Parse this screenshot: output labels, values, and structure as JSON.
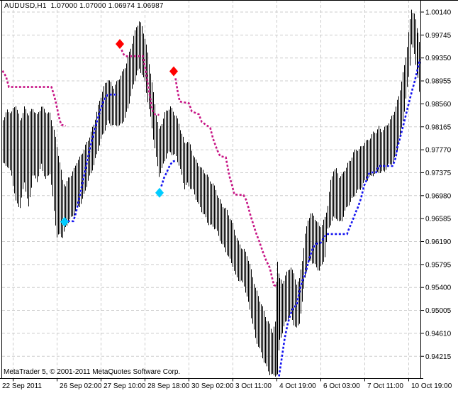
{
  "header": {
    "symbol_info": "AUDUSD,H1  1.07000 1.07000 1.06974 1.06987"
  },
  "footer": {
    "copyright": "MetaTrader 5, © 2001-2011 MetaQuotes Software Corp."
  },
  "colors": {
    "background": "#FFFFFF",
    "foreground": "#000000",
    "grid": "#CDCDCD",
    "bar": "#000000",
    "up_trail_line": "#1414F0",
    "down_trail_line": "#C71585",
    "buy_marker": "#00CCFF",
    "sell_marker": "#FF0000"
  },
  "chart_data": {
    "type": "bar",
    "symbol": "AUDUSD",
    "timeframe": "H1",
    "quote": {
      "open": "1.07000",
      "high": "1.07000",
      "low": "1.06974",
      "close": "1.06987"
    },
    "title": "AUDUSD,H1 1.07000 1.07000 1.06974 1.06987",
    "grid": true,
    "y_axis": {
      "side": "right",
      "min": 0.94215,
      "max": 1.0014,
      "step": 0.00395,
      "labels": [
        "1.00140",
        "0.99745",
        "0.99350",
        "0.98955",
        "0.98560",
        "0.98165",
        "0.97770",
        "0.97375",
        "0.96980",
        "0.96585",
        "0.96190",
        "0.95795",
        "0.95400",
        "0.95005",
        "0.94610",
        "0.94215"
      ]
    },
    "x_axis": {
      "side": "bottom",
      "labels": [
        "22 Sep 2011",
        "26 Sep 02:00",
        "27 Sep 10:00",
        "28 Sep 18:00",
        "30 Sep 02:00",
        "3 Oct 11:00",
        "4 Oct 19:00",
        "6 Oct 03:00",
        "7 Oct 11:00",
        "10 Oct 19:00"
      ],
      "tick_x": [
        18,
        80,
        142,
        204,
        266,
        328,
        390,
        452,
        514,
        576
      ]
    },
    "bars_high_low_anchors": [
      [
        4,
        0.9833,
        0.9754
      ],
      [
        10,
        0.9846,
        0.9748
      ],
      [
        16,
        0.984,
        0.973
      ],
      [
        22,
        0.9852,
        0.9687
      ],
      [
        28,
        0.9827,
        0.9681
      ],
      [
        34,
        0.9852,
        0.9724
      ],
      [
        40,
        0.984,
        0.9675
      ],
      [
        46,
        0.9846,
        0.973
      ],
      [
        52,
        0.9833,
        0.9724
      ],
      [
        58,
        0.9852,
        0.9754
      ],
      [
        64,
        0.9846,
        0.9727
      ],
      [
        70,
        0.984,
        0.9736
      ],
      [
        76,
        0.9809,
        0.9669
      ],
      [
        80,
        0.9779,
        0.9626
      ],
      [
        84,
        0.9754,
        0.9632
      ],
      [
        88,
        0.9724,
        0.963
      ],
      [
        92,
        0.9718,
        0.9644
      ],
      [
        96,
        0.973,
        0.9654
      ],
      [
        100,
        0.9736,
        0.9657
      ],
      [
        104,
        0.9742,
        0.9663
      ],
      [
        108,
        0.9754,
        0.9675
      ],
      [
        112,
        0.976,
        0.9681
      ],
      [
        116,
        0.9772,
        0.9693
      ],
      [
        120,
        0.9785,
        0.9711
      ],
      [
        124,
        0.9797,
        0.9724
      ],
      [
        128,
        0.9809,
        0.9736
      ],
      [
        132,
        0.9821,
        0.9748
      ],
      [
        136,
        0.984,
        0.9766
      ],
      [
        140,
        0.9858,
        0.9785
      ],
      [
        144,
        0.9876,
        0.9803
      ],
      [
        148,
        0.9891,
        0.9815
      ],
      [
        152,
        0.9901,
        0.9827
      ],
      [
        156,
        0.9894,
        0.9821
      ],
      [
        160,
        0.9886,
        0.9815
      ],
      [
        164,
        0.9891,
        0.9818
      ],
      [
        168,
        0.9898,
        0.9815
      ],
      [
        172,
        0.9907,
        0.9825
      ],
      [
        176,
        0.9919,
        0.9833
      ],
      [
        180,
        0.9937,
        0.9852
      ],
      [
        184,
        0.9955,
        0.987
      ],
      [
        188,
        0.9974,
        0.9888
      ],
      [
        192,
        0.9988,
        0.9903
      ],
      [
        196,
        0.9996,
        0.9913
      ],
      [
        200,
        0.9986,
        0.9907
      ],
      [
        204,
        0.9968,
        0.9894
      ],
      [
        208,
        0.9943,
        0.9864
      ],
      [
        212,
        0.9913,
        0.9833
      ],
      [
        216,
        0.9876,
        0.9797
      ],
      [
        220,
        0.984,
        0.976
      ],
      [
        224,
        0.9809,
        0.973
      ],
      [
        228,
        0.9821,
        0.9742
      ],
      [
        232,
        0.9837,
        0.976
      ],
      [
        236,
        0.9846,
        0.9772
      ],
      [
        240,
        0.9852,
        0.9776
      ],
      [
        244,
        0.9846,
        0.9769
      ],
      [
        248,
        0.9837,
        0.9764
      ],
      [
        252,
        0.9821,
        0.9748
      ],
      [
        256,
        0.9803,
        0.973
      ],
      [
        260,
        0.9785,
        0.9711
      ],
      [
        264,
        0.9791,
        0.972
      ],
      [
        268,
        0.9785,
        0.9715
      ],
      [
        272,
        0.9772,
        0.9708
      ],
      [
        276,
        0.976,
        0.9693
      ],
      [
        280,
        0.9752,
        0.9679
      ],
      [
        284,
        0.9742,
        0.9669
      ],
      [
        288,
        0.9736,
        0.9663
      ],
      [
        292,
        0.973,
        0.9654
      ],
      [
        296,
        0.9724,
        0.965
      ],
      [
        300,
        0.972,
        0.9647
      ],
      [
        304,
        0.9711,
        0.9642
      ],
      [
        308,
        0.9696,
        0.9626
      ],
      [
        312,
        0.9683,
        0.9614
      ],
      [
        316,
        0.9675,
        0.9605
      ],
      [
        320,
        0.9669,
        0.9598
      ],
      [
        324,
        0.9659,
        0.9589
      ],
      [
        328,
        0.965,
        0.9581
      ],
      [
        332,
        0.9635,
        0.9561
      ],
      [
        336,
        0.962,
        0.9553
      ],
      [
        340,
        0.961,
        0.9547
      ],
      [
        344,
        0.9602,
        0.9541
      ],
      [
        348,
        0.9593,
        0.9522
      ],
      [
        352,
        0.9577,
        0.9504
      ],
      [
        356,
        0.9559,
        0.948
      ],
      [
        360,
        0.9541,
        0.9455
      ],
      [
        364,
        0.9528,
        0.9439
      ],
      [
        368,
        0.9513,
        0.9425
      ],
      [
        372,
        0.9498,
        0.941
      ],
      [
        376,
        0.9481,
        0.94
      ],
      [
        380,
        0.9473,
        0.9392
      ],
      [
        384,
        0.9464,
        0.9391
      ],
      [
        388,
        0.948,
        0.9392
      ],
      [
        391,
        0.9589,
        0.9391
      ],
      [
        394,
        0.9559,
        0.9449
      ],
      [
        398,
        0.9547,
        0.9461
      ],
      [
        402,
        0.9561,
        0.9476
      ],
      [
        406,
        0.9565,
        0.9486
      ],
      [
        410,
        0.9574,
        0.9492
      ],
      [
        414,
        0.9561,
        0.948
      ],
      [
        418,
        0.9549,
        0.9471
      ],
      [
        422,
        0.9556,
        0.9481
      ],
      [
        426,
        0.959,
        0.9512
      ],
      [
        430,
        0.963,
        0.9556
      ],
      [
        434,
        0.9655,
        0.9578
      ],
      [
        438,
        0.9663,
        0.9586
      ],
      [
        442,
        0.9663,
        0.9583
      ],
      [
        446,
        0.9654,
        0.9577
      ],
      [
        450,
        0.9648,
        0.9572
      ],
      [
        454,
        0.9651,
        0.9578
      ],
      [
        458,
        0.9661,
        0.9592
      ],
      [
        462,
        0.9681,
        0.9636
      ],
      [
        466,
        0.972,
        0.9648
      ],
      [
        470,
        0.974,
        0.966
      ],
      [
        474,
        0.9742,
        0.9663
      ],
      [
        478,
        0.9733,
        0.9654
      ],
      [
        482,
        0.9736,
        0.9657
      ],
      [
        486,
        0.9745,
        0.9669
      ],
      [
        490,
        0.9752,
        0.9678
      ],
      [
        494,
        0.9757,
        0.9684
      ],
      [
        498,
        0.9769,
        0.9696
      ],
      [
        502,
        0.9776,
        0.9705
      ],
      [
        506,
        0.9779,
        0.9711
      ],
      [
        510,
        0.9785,
        0.9715
      ],
      [
        514,
        0.9793,
        0.9722
      ],
      [
        518,
        0.9793,
        0.9724
      ],
      [
        522,
        0.9797,
        0.9728
      ],
      [
        526,
        0.9803,
        0.9733
      ],
      [
        530,
        0.9806,
        0.9738
      ],
      [
        534,
        0.9815,
        0.9742
      ],
      [
        538,
        0.9812,
        0.974
      ],
      [
        542,
        0.9817,
        0.9742
      ],
      [
        546,
        0.9823,
        0.9746
      ],
      [
        550,
        0.9827,
        0.975
      ],
      [
        554,
        0.9836,
        0.9753
      ],
      [
        558,
        0.9848,
        0.9768
      ],
      [
        562,
        0.9868,
        0.979
      ],
      [
        566,
        0.9896,
        0.9816
      ],
      [
        570,
        0.9924,
        0.9846
      ],
      [
        574,
        0.9958,
        0.9882
      ],
      [
        578,
        1.0,
        0.9922
      ],
      [
        580,
        1.0019,
        0.9955
      ],
      [
        584,
        1.0008,
        0.994
      ],
      [
        586,
        0.9996,
        0.9925
      ],
      [
        589,
        0.9978,
        0.99
      ],
      [
        591,
        0.9963,
        0.9876
      ]
    ],
    "indicator": {
      "style": "dotted trailing stop with reversal diamonds",
      "down_segments": [
        [
          [
            3,
            0.9913
          ],
          [
            8,
            0.9903
          ],
          [
            12,
            0.9885
          ],
          [
            72,
            0.9885
          ],
          [
            75,
            0.9874
          ],
          [
            78,
            0.986
          ],
          [
            80,
            0.9849
          ],
          [
            82,
            0.9837
          ],
          [
            84,
            0.9827
          ],
          [
            86,
            0.982
          ],
          [
            92,
            0.9818
          ]
        ],
        [
          [
            171,
            0.9949
          ],
          [
            174,
            0.9941
          ],
          [
            177,
            0.9938
          ],
          [
            201,
            0.9938
          ],
          [
            204,
            0.992
          ],
          [
            207,
            0.9898
          ],
          [
            210,
            0.9876
          ],
          [
            213,
            0.9854
          ],
          [
            215,
            0.9843
          ],
          [
            218,
            0.9838
          ],
          [
            224,
            0.9837
          ]
        ],
        [
          [
            247,
            0.99
          ],
          [
            250,
            0.9878
          ],
          [
            253,
            0.986
          ],
          [
            266,
            0.9857
          ],
          [
            270,
            0.9843
          ],
          [
            280,
            0.9838
          ],
          [
            284,
            0.9825
          ],
          [
            296,
            0.9815
          ],
          [
            300,
            0.9796
          ],
          [
            306,
            0.9776
          ],
          [
            310,
            0.9766
          ],
          [
            318,
            0.9764
          ],
          [
            323,
            0.9732
          ],
          [
            327,
            0.9715
          ],
          [
            330,
            0.97
          ],
          [
            343,
            0.9699
          ],
          [
            347,
            0.969
          ],
          [
            350,
            0.9677
          ],
          [
            353,
            0.9663
          ],
          [
            357,
            0.9648
          ],
          [
            360,
            0.9636
          ],
          [
            365,
            0.962
          ],
          [
            370,
            0.9602
          ],
          [
            375,
            0.9586
          ],
          [
            380,
            0.9574
          ],
          [
            384,
            0.9553
          ],
          [
            386,
            0.9544
          ],
          [
            390,
            0.9542
          ]
        ]
      ],
      "up_segments": [
        [
          [
            95,
            0.9654
          ],
          [
            103,
            0.9654
          ],
          [
            106,
            0.9666
          ],
          [
            109,
            0.9681
          ],
          [
            112,
            0.9698
          ],
          [
            115,
            0.9715
          ],
          [
            118,
            0.9732
          ],
          [
            121,
            0.9749
          ],
          [
            124,
            0.9766
          ],
          [
            127,
            0.9782
          ],
          [
            130,
            0.9797
          ],
          [
            133,
            0.9811
          ],
          [
            136,
            0.9825
          ],
          [
            139,
            0.9837
          ],
          [
            142,
            0.9849
          ],
          [
            145,
            0.9859
          ],
          [
            148,
            0.9866
          ],
          [
            151,
            0.9871
          ],
          [
            155,
            0.9872
          ],
          [
            166,
            0.9872
          ]
        ],
        [
          [
            227,
            0.9714
          ],
          [
            231,
            0.9729
          ],
          [
            235,
            0.9739
          ],
          [
            239,
            0.975
          ],
          [
            243,
            0.9757
          ],
          [
            248,
            0.9758
          ]
        ],
        [
          [
            393,
            0.9387
          ],
          [
            397,
            0.9419
          ],
          [
            401,
            0.9452
          ],
          [
            405,
            0.9476
          ],
          [
            409,
            0.9493
          ],
          [
            413,
            0.9505
          ],
          [
            418,
            0.951
          ],
          [
            421,
            0.9528
          ],
          [
            424,
            0.9544
          ],
          [
            428,
            0.9558
          ],
          [
            431,
            0.9567
          ],
          [
            434,
            0.9582
          ],
          [
            438,
            0.9598
          ],
          [
            441,
            0.9608
          ],
          [
            445,
            0.9615
          ],
          [
            452,
            0.9617
          ],
          [
            456,
            0.9625
          ],
          [
            460,
            0.9632
          ],
          [
            489,
            0.9632
          ],
          [
            492,
            0.9642
          ],
          [
            495,
            0.965
          ],
          [
            498,
            0.9659
          ],
          [
            501,
            0.9669
          ],
          [
            504,
            0.9677
          ],
          [
            507,
            0.9687
          ],
          [
            509,
            0.9695
          ],
          [
            511,
            0.9705
          ],
          [
            513,
            0.9715
          ],
          [
            516,
            0.9723
          ],
          [
            518,
            0.973
          ],
          [
            520,
            0.9736
          ],
          [
            522,
            0.9738
          ],
          [
            530,
            0.9738
          ],
          [
            532,
            0.9744
          ],
          [
            534,
            0.9749
          ],
          [
            553,
            0.9749
          ],
          [
            556,
            0.9757
          ],
          [
            558,
            0.9766
          ],
          [
            560,
            0.9781
          ],
          [
            563,
            0.9794
          ],
          [
            566,
            0.9808
          ],
          [
            569,
            0.9822
          ],
          [
            572,
            0.9837
          ],
          [
            575,
            0.9852
          ],
          [
            578,
            0.9866
          ],
          [
            581,
            0.988
          ],
          [
            584,
            0.9893
          ],
          [
            586,
            0.9903
          ],
          [
            588,
            0.9913
          ],
          [
            590,
            0.9923
          ],
          [
            592,
            0.9933
          ]
        ]
      ],
      "buy_markers": [
        [
          91,
          0.9653
        ],
        [
          225,
          0.9703
        ]
      ],
      "sell_markers": [
        [
          169,
          0.9959
        ],
        [
          245,
          0.9912
        ]
      ]
    }
  }
}
